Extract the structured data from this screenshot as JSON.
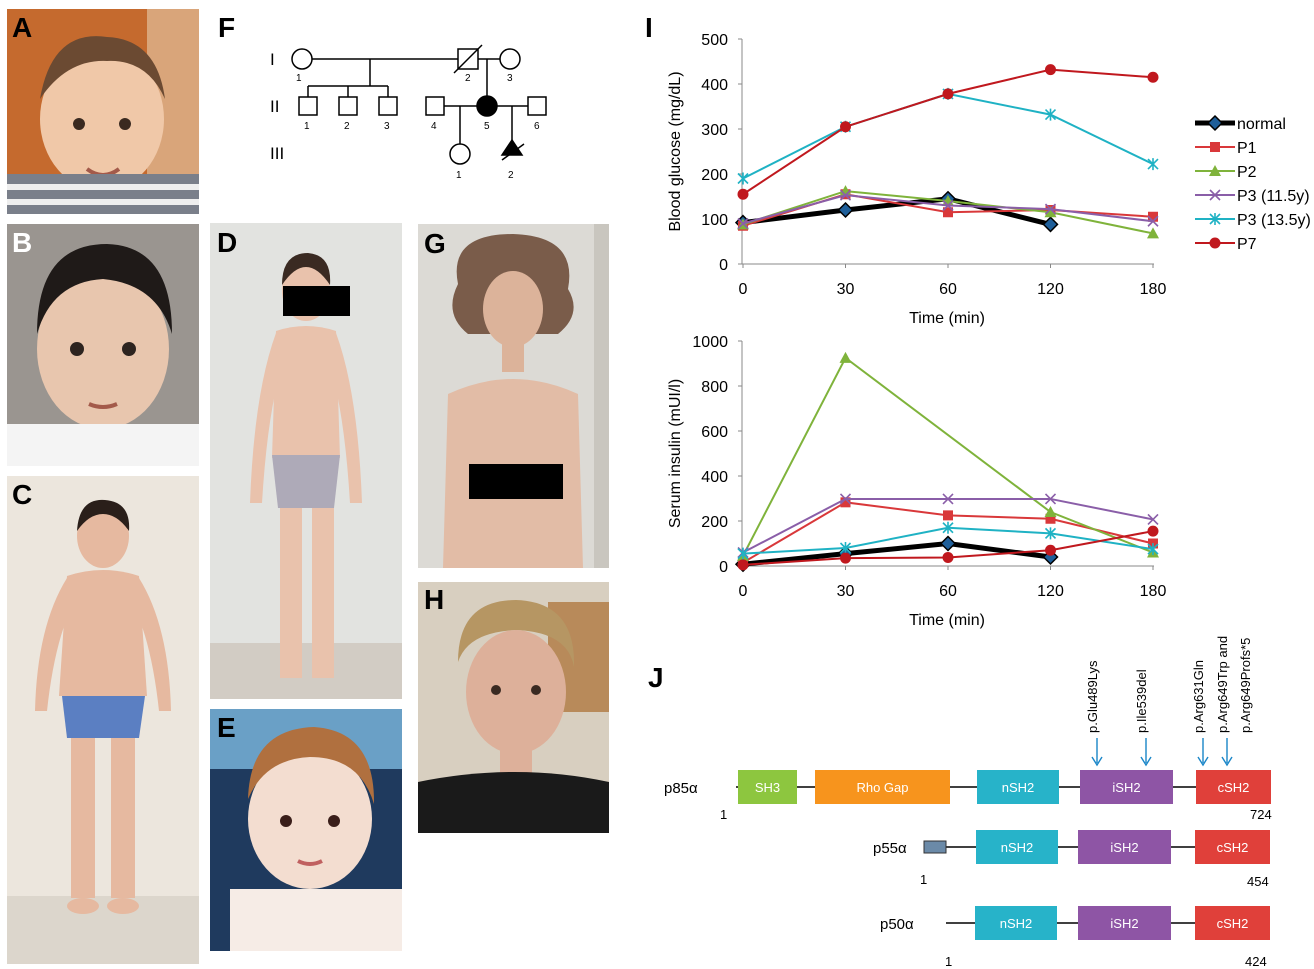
{
  "panels": {
    "A": "A",
    "B": "B",
    "C": "C",
    "D": "D",
    "E": "E",
    "F": "F",
    "G": "G",
    "H": "H",
    "I": "I",
    "J": "J"
  },
  "pedigree": {
    "generations": [
      "I",
      "II",
      "III"
    ],
    "gen1_ids": [
      "1",
      "2",
      "3"
    ],
    "gen2_ids": [
      "1",
      "2",
      "3",
      "4",
      "5",
      "6"
    ],
    "gen3_ids": [
      "1",
      "2"
    ]
  },
  "chart_data": [
    {
      "type": "line",
      "xlabel": "Time (min)",
      "ylabel": "Blood glucose (mg/dL)",
      "categories": [
        "0",
        "30",
        "60",
        "120",
        "180"
      ],
      "ylim": [
        0,
        500
      ],
      "yticks": [
        "0",
        "100",
        "200",
        "300",
        "400",
        "500"
      ],
      "legend_position": "right",
      "series": [
        {
          "name": "normal",
          "color": "#000000",
          "values": [
            92,
            120,
            145,
            88,
            null
          ],
          "marker": "diamond",
          "thick": true
        },
        {
          "name": "P1",
          "color": "#d9383a",
          "values": [
            85,
            155,
            115,
            120,
            105
          ],
          "marker": "square"
        },
        {
          "name": "P2",
          "color": "#7fb33b",
          "values": [
            88,
            162,
            140,
            115,
            68
          ],
          "marker": "triangle"
        },
        {
          "name": "P3 (11.5y)",
          "color": "#8a5ea8",
          "values": [
            90,
            153,
            130,
            122,
            95
          ],
          "marker": "x"
        },
        {
          "name": "P3 (13.5y)",
          "color": "#1fb2c4",
          "values": [
            190,
            305,
            378,
            332,
            222
          ],
          "marker": "star"
        },
        {
          "name": "P7",
          "color": "#c0181e",
          "values": [
            155,
            305,
            378,
            432,
            415
          ],
          "marker": "circle"
        }
      ]
    },
    {
      "type": "line",
      "xlabel": "Time (min)",
      "ylabel": "Serum insulin (mUI/l)",
      "categories": [
        "0",
        "30",
        "60",
        "120",
        "180"
      ],
      "ylim": [
        0,
        1000
      ],
      "yticks": [
        "0",
        "200",
        "400",
        "600",
        "800",
        "1000"
      ],
      "series": [
        {
          "name": "normal",
          "color": "#000000",
          "values": [
            8,
            55,
            100,
            40,
            null
          ],
          "marker": "diamond",
          "thick": true
        },
        {
          "name": "P1",
          "color": "#d9383a",
          "values": [
            15,
            283,
            225,
            210,
            100
          ],
          "marker": "square"
        },
        {
          "name": "P2",
          "color": "#7fb33b",
          "values": [
            45,
            925,
            null,
            240,
            60
          ],
          "marker": "triangle"
        },
        {
          "name": "P3 (11.5y)",
          "color": "#8a5ea8",
          "values": [
            60,
            298,
            298,
            298,
            207
          ],
          "marker": "x"
        },
        {
          "name": "P3 (13.5y)",
          "color": "#1fb2c4",
          "values": [
            55,
            80,
            170,
            145,
            75
          ],
          "marker": "star"
        },
        {
          "name": "P7",
          "color": "#c0181e",
          "values": [
            5,
            35,
            38,
            70,
            155
          ],
          "marker": "circle"
        }
      ]
    }
  ],
  "protein": {
    "mutations": [
      "p.Glu489Lys",
      "p.Ile539del",
      "p.Arg631Gln",
      "p.Arg649Trp and",
      "p.Arg649Profs*5"
    ],
    "rows": [
      {
        "name": "p85α",
        "start": "1",
        "end": "724",
        "domains": [
          {
            "label": "SH3",
            "color": "#8dc63f"
          },
          {
            "label": "Rho Gap",
            "color": "#f7941d"
          },
          {
            "label": "nSH2",
            "color": "#27b3c9"
          },
          {
            "label": "iSH2",
            "color": "#8e55a5"
          },
          {
            "label": "cSH2",
            "color": "#e0403a"
          }
        ]
      },
      {
        "name": "p55α",
        "start": "1",
        "end": "454",
        "domains": [
          {
            "label": "nSH2",
            "color": "#27b3c9"
          },
          {
            "label": "iSH2",
            "color": "#8e55a5"
          },
          {
            "label": "cSH2",
            "color": "#e0403a"
          }
        ]
      },
      {
        "name": "p50α",
        "start": "1",
        "end": "424",
        "domains": [
          {
            "label": "nSH2",
            "color": "#27b3c9"
          },
          {
            "label": "iSH2",
            "color": "#8e55a5"
          },
          {
            "label": "cSH2",
            "color": "#e0403a"
          }
        ]
      }
    ]
  }
}
